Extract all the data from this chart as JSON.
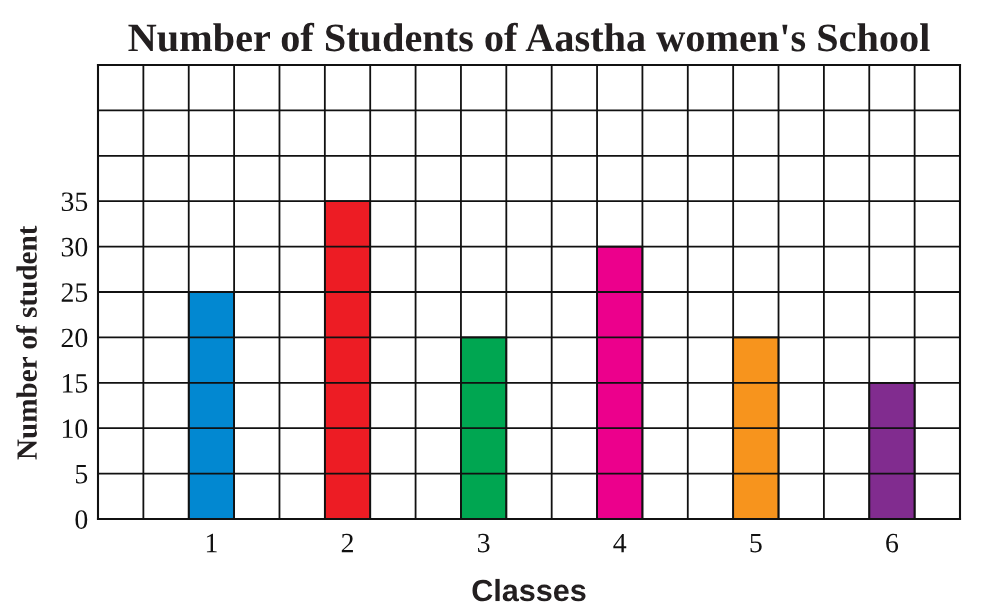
{
  "chart_data": {
    "type": "bar",
    "title": "Number of Students of Aastha women's School",
    "xlabel": "Classes",
    "ylabel": "Number of student",
    "categories": [
      "1",
      "2",
      "3",
      "4",
      "5",
      "6"
    ],
    "values": [
      25,
      35,
      20,
      30,
      20,
      15
    ],
    "colors": [
      "#0288d1",
      "#ed1c24",
      "#00a651",
      "#ec008c",
      "#f7941d",
      "#812c8f"
    ],
    "ylim": [
      0,
      50
    ],
    "yticks": [
      0,
      5,
      10,
      15,
      20,
      25,
      30,
      35,
      {
        "value": 40,
        "label": null
      },
      {
        "value": 45,
        "label": null
      },
      {
        "value": 50,
        "label": null
      }
    ],
    "grid": true
  }
}
